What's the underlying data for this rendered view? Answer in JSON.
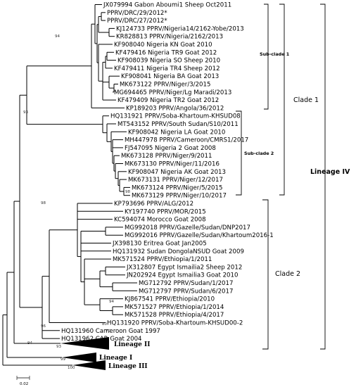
{
  "taxa": [
    "JX079994 Gabon Aboumi1 Sheep Oct2011",
    "PPRV/DRC/29/2012*",
    "PPRV/DRC/27/2012*",
    "KJ124733 PPRV/Nigeria14/2162-Yobe/2013",
    "KR828813 PPRV/Nigeria/2162/2013",
    "KF908040 Nigeria KN Goat 2010",
    "KF479416 Nigeria TR9 Goat 2012",
    "KF908039 Nigeria SO Sheep 2010",
    "KF479411 Nigeria TR4 Sheep 2012",
    "KF908041 Nigeria BA Goat 2013",
    "MK673122 PPRV/Niger/3/2015",
    "MG694465 PPRV/Niger/Lg Maradi/2013",
    "KF479409 Nigeria TR2 Goat 2012",
    "KP189203 PPRV/Angola/36/2012",
    "HQ131921 PPRV/Soba-Khartoum-KHSUD08",
    "MT543152 PPRV/South Sudan/S10/2011",
    "KF908042 Nigeria LA Goat 2010",
    "MH447978 PPRV/Cameroon/CMRS1/2017",
    "FJ547095 Nigeria 2 Goat 2008",
    "MK673128 PPRV/Niger/9/2011",
    "MK673130 PPRV/Niger/11/2016",
    "KF908047 Nigeria AK Goat 2013",
    "MK673131 PPRV/Niger/12/2017",
    "MK673124 PPRV/Niger/5/2015",
    "MK673129 PPRV/Niger/10/2017",
    "KP793696 PPRV/ALG/2012",
    "KY197740 PPRV/MOR/2015",
    "KC594074 Morocco Goat 2008",
    "MG992018 PPRV/Gazelle/Sudan/DNP2017",
    "MG992016 PPRV/Gazelle/Sudan/Khartoum2016-1",
    "JX398130 Eritrea Goat Jan2005",
    "HQ131932 Sudan DongolaNSUD Goat 2009",
    "MK571524 PPRV/Ethiopia/1/2011",
    "JX312807 Egypt Ismailia2 Sheep 2012",
    "JN202924 Egypt Ismailia3 Goat 2010",
    "MG712792 PPRV/Sudan/1/2017",
    "MG712797 PPRV/Sudan/6/2017",
    "KJ867541 PPRV/Ethiopia/2010",
    "MK571527 PPRV/Ethiopia/1/2014",
    "MK571528 PPRV/Ethiopia/4/2017",
    "HQ131920 PPRV/Soba-Khartoum-KHSUD00-2",
    "HQ131960 Cameroon Goat 1997",
    "HQ131962 CAR Goat 2004"
  ],
  "bootstrap": {
    "b94a": "94",
    "b93": "93",
    "b98a": "98",
    "b98b": "98",
    "b94b": "94",
    "b80": "80",
    "b70": "70",
    "b96": "96",
    "b94c": "94",
    "b93b": "93",
    "b99": "99",
    "b100": "100"
  },
  "labels": {
    "subclade1": "Sub-clade 1",
    "subclade2": "Sub-clade 2",
    "clade1": "Clade 1",
    "clade2": "Clade 2",
    "lineage4": "Lineage IV",
    "lineage2": "Lineage II",
    "lineage1": "Lineage I",
    "lineage3": "Lineage III"
  },
  "scale": {
    "label": "0.02"
  }
}
